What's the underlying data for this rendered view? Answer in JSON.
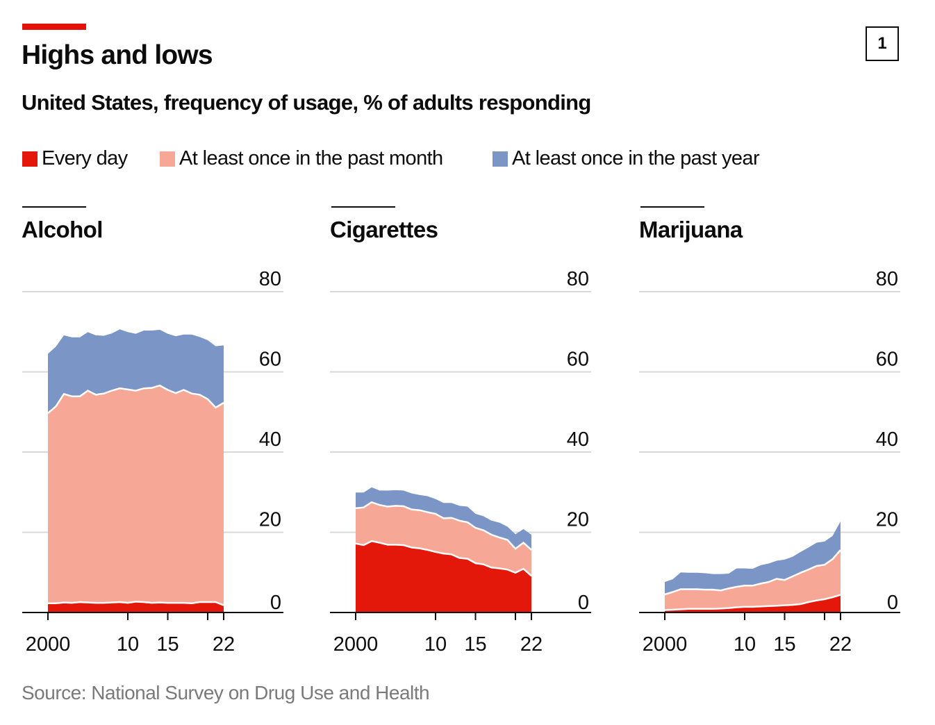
{
  "header": {
    "title": "Highs and lows",
    "subtitle": "United States, frequency of usage, % of adults responding",
    "badge": "1"
  },
  "legend": [
    {
      "label": "Every day",
      "color": "#e3170a"
    },
    {
      "label": "At least once in the past month",
      "color": "#f7a795"
    },
    {
      "label": "At least once in the past year",
      "color": "#7b96c6"
    }
  ],
  "source": "Source: National Survey on Drug Use and Health",
  "chart_data": [
    {
      "type": "area",
      "title": "Alcohol",
      "x": [
        2000,
        2001,
        2002,
        2003,
        2004,
        2005,
        2006,
        2007,
        2008,
        2009,
        2010,
        2011,
        2012,
        2013,
        2014,
        2015,
        2016,
        2017,
        2018,
        2019,
        2020,
        2021,
        2022
      ],
      "xticks": [
        2000,
        2010,
        2015,
        2020,
        2022
      ],
      "xtick_labels": [
        "2000",
        "10",
        "15",
        "",
        "22"
      ],
      "yticks": [
        0,
        20,
        40,
        60,
        80
      ],
      "ylim": [
        0,
        80
      ],
      "series": [
        {
          "name": "At least once in the past year",
          "values": [
            64.5,
            66.3,
            69.1,
            68.6,
            68.6,
            69.9,
            69.1,
            69.0,
            69.6,
            70.6,
            69.9,
            69.5,
            70.3,
            70.3,
            70.5,
            69.5,
            68.9,
            69.3,
            69.3,
            68.7,
            67.9,
            66.4,
            66.6
          ]
        },
        {
          "name": "At least once in the past month",
          "values": [
            49.7,
            51.4,
            54.5,
            53.9,
            53.9,
            55.3,
            54.3,
            54.6,
            55.3,
            55.9,
            55.6,
            55.3,
            55.9,
            56.0,
            56.6,
            55.5,
            54.7,
            55.5,
            54.6,
            54.3,
            53.2,
            51.1,
            52.3
          ]
        },
        {
          "name": "Every day",
          "values": [
            2.3,
            2.3,
            2.5,
            2.4,
            2.6,
            2.5,
            2.4,
            2.4,
            2.5,
            2.6,
            2.4,
            2.7,
            2.6,
            2.4,
            2.5,
            2.4,
            2.4,
            2.4,
            2.3,
            2.6,
            2.6,
            2.6,
            1.8
          ]
        }
      ]
    },
    {
      "type": "area",
      "title": "Cigarettes",
      "x": [
        2000,
        2001,
        2002,
        2003,
        2004,
        2005,
        2006,
        2007,
        2008,
        2009,
        2010,
        2011,
        2012,
        2013,
        2014,
        2015,
        2016,
        2017,
        2018,
        2019,
        2020,
        2021,
        2022
      ],
      "xticks": [
        2000,
        2010,
        2015,
        2020,
        2022
      ],
      "xtick_labels": [
        "2000",
        "10",
        "15",
        "",
        "22"
      ],
      "yticks": [
        0,
        20,
        40,
        60,
        80
      ],
      "ylim": [
        0,
        80
      ],
      "series": [
        {
          "name": "At least once in the past year",
          "values": [
            29.9,
            29.9,
            31.2,
            30.4,
            30.4,
            30.5,
            30.4,
            29.7,
            29.3,
            29.0,
            28.3,
            27.3,
            27.3,
            26.6,
            26.4,
            24.6,
            24.0,
            22.9,
            22.4,
            21.4,
            19.5,
            20.8,
            19.4
          ]
        },
        {
          "name": "At least once in the past month",
          "values": [
            26.0,
            26.2,
            27.5,
            26.8,
            26.4,
            26.6,
            26.5,
            25.7,
            25.5,
            25.0,
            24.6,
            23.5,
            23.6,
            22.9,
            22.5,
            21.1,
            20.5,
            19.4,
            18.7,
            18.1,
            15.9,
            17.4,
            15.6
          ]
        },
        {
          "name": "Every day",
          "values": [
            17.2,
            16.8,
            17.8,
            17.4,
            16.9,
            16.9,
            16.8,
            16.2,
            16.0,
            15.6,
            15.1,
            14.7,
            14.5,
            13.6,
            13.4,
            12.3,
            12.0,
            11.2,
            11.0,
            10.7,
            9.9,
            10.9,
            9.1
          ]
        }
      ]
    },
    {
      "type": "area",
      "title": "Marijuana",
      "x": [
        2000,
        2001,
        2002,
        2003,
        2004,
        2005,
        2006,
        2007,
        2008,
        2009,
        2010,
        2011,
        2012,
        2013,
        2014,
        2015,
        2016,
        2017,
        2018,
        2019,
        2020,
        2021,
        2022
      ],
      "xticks": [
        2000,
        2010,
        2015,
        2020,
        2022
      ],
      "xtick_labels": [
        "2000",
        "10",
        "15",
        "",
        "22"
      ],
      "yticks": [
        0,
        20,
        40,
        60,
        80
      ],
      "ylim": [
        0,
        80
      ],
      "series": [
        {
          "name": "At least once in the past year",
          "values": [
            7.6,
            8.3,
            10.0,
            9.9,
            9.9,
            9.8,
            9.6,
            9.6,
            9.7,
            11.0,
            11.0,
            10.9,
            11.8,
            12.2,
            12.9,
            13.2,
            13.9,
            15.1,
            16.2,
            17.4,
            17.7,
            19.1,
            22.7
          ]
        },
        {
          "name": "At least once in the past month",
          "values": [
            4.5,
            5.1,
            5.8,
            5.8,
            5.8,
            5.7,
            5.7,
            5.5,
            6.0,
            6.4,
            6.7,
            6.7,
            7.2,
            7.6,
            8.4,
            8.1,
            9.0,
            9.9,
            10.7,
            11.6,
            11.9,
            13.3,
            15.6
          ]
        },
        {
          "name": "Every day",
          "values": [
            0.6,
            0.7,
            0.8,
            0.9,
            0.9,
            0.9,
            0.9,
            1.0,
            1.1,
            1.3,
            1.4,
            1.4,
            1.5,
            1.6,
            1.7,
            1.8,
            1.9,
            2.1,
            2.6,
            3.0,
            3.3,
            3.8,
            4.4
          ]
        }
      ]
    }
  ]
}
